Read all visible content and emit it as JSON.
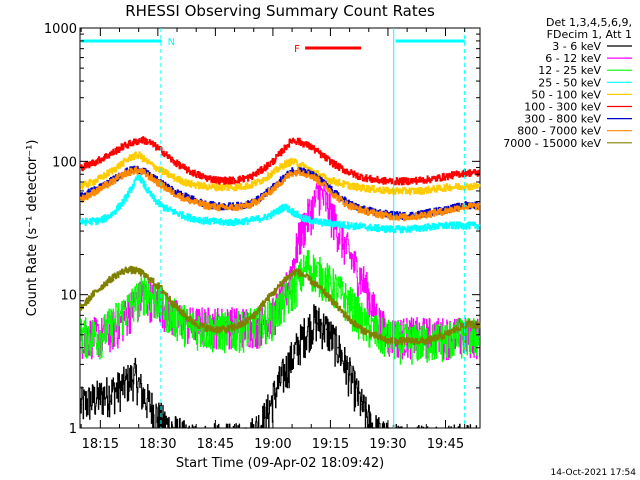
{
  "chart_data": {
    "type": "line",
    "title": "RHESSI Observing Summary Count Rates",
    "xlabel": "Start Time (09-Apr-02 18:09:42)",
    "ylabel": "Count Rate (s⁻¹ detector⁻¹)",
    "yscale": "log",
    "ylim": [
      1,
      1000
    ],
    "xlim_minutes": [
      18.15,
      19.9
    ],
    "x_ticks": [
      {
        "minute": 1095,
        "label": "18:15"
      },
      {
        "minute": 1110,
        "label": "18:30"
      },
      {
        "minute": 1125,
        "label": "18:45"
      },
      {
        "minute": 1140,
        "label": "19:00"
      },
      {
        "minute": 1155,
        "label": "19:15"
      },
      {
        "minute": 1170,
        "label": "19:30"
      },
      {
        "minute": 1185,
        "label": "19:45"
      }
    ],
    "y_ticks": [
      {
        "value": 1,
        "label": "1"
      },
      {
        "value": 10,
        "label": "10"
      },
      {
        "value": 100,
        "label": "100"
      },
      {
        "value": 1000,
        "label": "1000"
      }
    ],
    "legend_header": [
      "Det 1,3,4,5,6,9,",
      "FDecim 1, Att 1"
    ],
    "legend_placement": "right",
    "series": [
      {
        "name": "3 - 6 keV",
        "color": "#000000",
        "points": [
          [
            1090,
            1.5
          ],
          [
            1100,
            2.0
          ],
          [
            1104,
            2.5
          ],
          [
            1106,
            1.8
          ],
          [
            1108,
            1.5
          ],
          [
            1110,
            1.2
          ],
          [
            1113,
            1.0
          ],
          [
            1118,
            0.8
          ],
          [
            1125,
            0.8
          ],
          [
            1133,
            0.8
          ],
          [
            1138,
            1.2
          ],
          [
            1141,
            2.0
          ],
          [
            1144,
            3.0
          ],
          [
            1148,
            5.0
          ],
          [
            1151,
            6.5
          ],
          [
            1154,
            5.5
          ],
          [
            1157,
            4.0
          ],
          [
            1160,
            2.5
          ],
          [
            1163,
            1.5
          ],
          [
            1166,
            1.0
          ],
          [
            1170,
            0.8
          ],
          [
            1180,
            0.8
          ],
          [
            1190,
            0.8
          ]
        ]
      },
      {
        "name": "6 - 12 keV",
        "color": "#ff00ff",
        "points": [
          [
            1090,
            5
          ],
          [
            1095,
            5
          ],
          [
            1100,
            6
          ],
          [
            1103,
            8
          ],
          [
            1106,
            10
          ],
          [
            1110,
            9
          ],
          [
            1114,
            7
          ],
          [
            1118,
            6
          ],
          [
            1124,
            6
          ],
          [
            1130,
            6
          ],
          [
            1136,
            6
          ],
          [
            1140,
            7
          ],
          [
            1143,
            10
          ],
          [
            1145,
            16
          ],
          [
            1147,
            28
          ],
          [
            1149,
            38
          ],
          [
            1151,
            50
          ],
          [
            1152,
            60
          ],
          [
            1154,
            48
          ],
          [
            1156,
            36
          ],
          [
            1158,
            26
          ],
          [
            1160,
            20
          ],
          [
            1162,
            15
          ],
          [
            1164,
            12
          ],
          [
            1166,
            8
          ],
          [
            1168,
            6
          ],
          [
            1170,
            5
          ],
          [
            1175,
            5
          ],
          [
            1180,
            5
          ],
          [
            1190,
            5
          ]
        ]
      },
      {
        "name": "12 - 25 keV",
        "color": "#00ff00",
        "points": [
          [
            1090,
            5
          ],
          [
            1095,
            5
          ],
          [
            1100,
            7
          ],
          [
            1104,
            9
          ],
          [
            1107,
            11
          ],
          [
            1110,
            9
          ],
          [
            1114,
            7
          ],
          [
            1118,
            6
          ],
          [
            1124,
            5.5
          ],
          [
            1130,
            5.5
          ],
          [
            1136,
            6
          ],
          [
            1140,
            7
          ],
          [
            1143,
            9
          ],
          [
            1146,
            12
          ],
          [
            1149,
            17
          ],
          [
            1151,
            15
          ],
          [
            1154,
            13
          ],
          [
            1158,
            10
          ],
          [
            1161,
            8
          ],
          [
            1164,
            6
          ],
          [
            1168,
            5
          ],
          [
            1175,
            4.5
          ],
          [
            1180,
            4.5
          ],
          [
            1190,
            5
          ]
        ]
      },
      {
        "name": "25 - 50 keV",
        "color": "#00ffff",
        "points": [
          [
            1090,
            35
          ],
          [
            1095,
            36
          ],
          [
            1098,
            40
          ],
          [
            1101,
            50
          ],
          [
            1103,
            62
          ],
          [
            1105,
            78
          ],
          [
            1107,
            62
          ],
          [
            1109,
            52
          ],
          [
            1111,
            46
          ],
          [
            1114,
            42
          ],
          [
            1118,
            38
          ],
          [
            1122,
            36
          ],
          [
            1126,
            35
          ],
          [
            1130,
            35
          ],
          [
            1134,
            36
          ],
          [
            1138,
            38
          ],
          [
            1141,
            42
          ],
          [
            1143,
            46
          ],
          [
            1145,
            42
          ],
          [
            1148,
            37
          ],
          [
            1152,
            35
          ],
          [
            1156,
            34
          ],
          [
            1160,
            33
          ],
          [
            1165,
            32
          ],
          [
            1170,
            31
          ],
          [
            1175,
            31
          ],
          [
            1180,
            32
          ],
          [
            1185,
            33
          ],
          [
            1190,
            33
          ]
        ]
      },
      {
        "name": "50 - 100 keV",
        "color": "#ffcc00",
        "points": [
          [
            1090,
            65
          ],
          [
            1094,
            72
          ],
          [
            1098,
            85
          ],
          [
            1101,
            98
          ],
          [
            1103,
            108
          ],
          [
            1105,
            112
          ],
          [
            1107,
            100
          ],
          [
            1110,
            88
          ],
          [
            1114,
            76
          ],
          [
            1118,
            68
          ],
          [
            1122,
            65
          ],
          [
            1126,
            64
          ],
          [
            1130,
            64
          ],
          [
            1134,
            66
          ],
          [
            1137,
            72
          ],
          [
            1140,
            82
          ],
          [
            1143,
            95
          ],
          [
            1145,
            100
          ],
          [
            1148,
            92
          ],
          [
            1151,
            82
          ],
          [
            1154,
            74
          ],
          [
            1158,
            68
          ],
          [
            1162,
            64
          ],
          [
            1166,
            62
          ],
          [
            1170,
            60
          ],
          [
            1174,
            60
          ],
          [
            1178,
            60
          ],
          [
            1182,
            62
          ],
          [
            1186,
            64
          ],
          [
            1190,
            65
          ]
        ]
      },
      {
        "name": "100 - 300 keV",
        "color": "#ff0000",
        "points": [
          [
            1090,
            90
          ],
          [
            1094,
            100
          ],
          [
            1098,
            115
          ],
          [
            1101,
            130
          ],
          [
            1104,
            140
          ],
          [
            1106,
            145
          ],
          [
            1108,
            138
          ],
          [
            1111,
            120
          ],
          [
            1114,
            100
          ],
          [
            1118,
            85
          ],
          [
            1122,
            76
          ],
          [
            1126,
            72
          ],
          [
            1130,
            72
          ],
          [
            1134,
            76
          ],
          [
            1137,
            86
          ],
          [
            1140,
            100
          ],
          [
            1143,
            125
          ],
          [
            1145,
            145
          ],
          [
            1147,
            140
          ],
          [
            1150,
            128
          ],
          [
            1153,
            110
          ],
          [
            1156,
            95
          ],
          [
            1159,
            85
          ],
          [
            1162,
            78
          ],
          [
            1166,
            73
          ],
          [
            1170,
            71
          ],
          [
            1174,
            71
          ],
          [
            1178,
            72
          ],
          [
            1182,
            74
          ],
          [
            1186,
            78
          ],
          [
            1190,
            82
          ]
        ]
      },
      {
        "name": "300 - 800 keV",
        "color": "#0000cc",
        "points": [
          [
            1090,
            55
          ],
          [
            1094,
            62
          ],
          [
            1098,
            72
          ],
          [
            1101,
            82
          ],
          [
            1104,
            88
          ],
          [
            1106,
            85
          ],
          [
            1108,
            78
          ],
          [
            1111,
            68
          ],
          [
            1114,
            60
          ],
          [
            1118,
            53
          ],
          [
            1122,
            48
          ],
          [
            1126,
            46
          ],
          [
            1130,
            46
          ],
          [
            1134,
            48
          ],
          [
            1137,
            54
          ],
          [
            1140,
            64
          ],
          [
            1143,
            76
          ],
          [
            1145,
            85
          ],
          [
            1147,
            86
          ],
          [
            1150,
            80
          ],
          [
            1153,
            70
          ],
          [
            1156,
            58
          ],
          [
            1159,
            50
          ],
          [
            1162,
            45
          ],
          [
            1166,
            42
          ],
          [
            1170,
            40
          ],
          [
            1174,
            39
          ],
          [
            1178,
            40
          ],
          [
            1182,
            42
          ],
          [
            1186,
            44
          ],
          [
            1190,
            47
          ]
        ]
      },
      {
        "name": "800 - 7000 keV",
        "color": "#ff8800",
        "points": [
          [
            1090,
            52
          ],
          [
            1094,
            60
          ],
          [
            1098,
            70
          ],
          [
            1101,
            80
          ],
          [
            1104,
            86
          ],
          [
            1106,
            83
          ],
          [
            1108,
            76
          ],
          [
            1111,
            66
          ],
          [
            1114,
            58
          ],
          [
            1118,
            51
          ],
          [
            1122,
            47
          ],
          [
            1126,
            45
          ],
          [
            1130,
            45
          ],
          [
            1134,
            47
          ],
          [
            1137,
            53
          ],
          [
            1140,
            62
          ],
          [
            1143,
            74
          ],
          [
            1145,
            82
          ],
          [
            1147,
            84
          ],
          [
            1150,
            78
          ],
          [
            1153,
            68
          ],
          [
            1156,
            56
          ],
          [
            1159,
            48
          ],
          [
            1162,
            44
          ],
          [
            1166,
            41
          ],
          [
            1170,
            39
          ],
          [
            1174,
            38
          ],
          [
            1178,
            39
          ],
          [
            1182,
            41
          ],
          [
            1186,
            43
          ],
          [
            1190,
            46
          ]
        ]
      },
      {
        "name": "7000 - 15000 keV",
        "color": "#808000",
        "points": [
          [
            1090,
            8
          ],
          [
            1093,
            10
          ],
          [
            1096,
            12
          ],
          [
            1099,
            14
          ],
          [
            1102,
            15.5
          ],
          [
            1105,
            15
          ],
          [
            1108,
            13
          ],
          [
            1111,
            11
          ],
          [
            1114,
            8.5
          ],
          [
            1117,
            7
          ],
          [
            1120,
            6
          ],
          [
            1124,
            5.5
          ],
          [
            1128,
            5.5
          ],
          [
            1132,
            6
          ],
          [
            1135,
            7
          ],
          [
            1138,
            9
          ],
          [
            1141,
            11
          ],
          [
            1143,
            13
          ],
          [
            1146,
            15
          ],
          [
            1148,
            14
          ],
          [
            1151,
            12
          ],
          [
            1154,
            10
          ],
          [
            1157,
            8
          ],
          [
            1160,
            6.5
          ],
          [
            1163,
            5.5
          ],
          [
            1166,
            5
          ],
          [
            1170,
            4.5
          ],
          [
            1175,
            4.5
          ],
          [
            1180,
            4.5
          ],
          [
            1185,
            5
          ],
          [
            1190,
            6
          ]
        ]
      }
    ],
    "annotations": [
      {
        "label": "N",
        "color": "#00ffff",
        "x_minutes": [
          1090,
          1111
        ]
      },
      {
        "label": "F",
        "color": "#ff0000",
        "x_minutes": [
          1145,
          1163
        ]
      },
      {
        "label": "",
        "color": "#00ffff",
        "x_minutes": [
          1172,
          1190
        ]
      }
    ],
    "vertical_markers": [
      {
        "x_minute": 1110.8,
        "color": "#00ffff",
        "style": "dashed"
      },
      {
        "x_minute": 1171.5,
        "color": "#00ffff",
        "style": "solid"
      },
      {
        "x_minute": 1190.0,
        "color": "#00ffff",
        "style": "dashed"
      }
    ],
    "footer_date": "14-Oct-2021 17:54"
  }
}
